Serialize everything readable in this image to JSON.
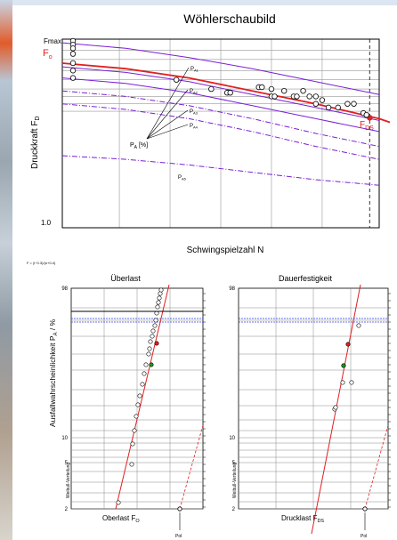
{
  "title": "Wöhlerschaubild",
  "colors": {
    "curve_red": "#e02020",
    "curve_purple": "#7a1fd6",
    "grid": "#888888",
    "green": "#1a9a1a",
    "blue_dotted": "#3344dd"
  },
  "woehler": {
    "ylabel": "Druckkraft F",
    "ylabel_sub": "D",
    "xlabel": "Schwingspielzahl N",
    "fmax_label": "Fmax",
    "fo_label": "F",
    "fo_sub": "o",
    "fds_label": "F",
    "fds_sub": "DS",
    "ytick_bottom": "1.0",
    "pa_label": "P",
    "pa_sub": "A",
    "pa_unit": " [%]",
    "curve_labels": [
      {
        "main": "P",
        "sub": "A1"
      },
      {
        "main": "P",
        "sub": "A2"
      },
      {
        "main": "P",
        "sub": "A3"
      },
      {
        "main": "P",
        "sub": "A4"
      },
      {
        "main": "P",
        "sub": "A5"
      }
    ]
  },
  "formula": "F = (i−0.3)/(n+0.4)",
  "chart_data": [
    {
      "type": "line",
      "title": "Wöhlerschaubild",
      "xlabel": "Schwingspielzahl N",
      "ylabel": "Druckkraft F_D",
      "scale": "log-log",
      "grid": true,
      "series": [
        {
          "name": "F_o",
          "x": [
            0,
            0.2,
            0.4,
            0.6,
            0.8,
            1.0
          ],
          "y": [
            0.88,
            0.85,
            0.8,
            0.73,
            0.66,
            0.58
          ]
        },
        {
          "name": "P_A1",
          "x": [
            0,
            0.2,
            0.4,
            0.6,
            0.8,
            1.0
          ],
          "y": [
            0.99,
            0.96,
            0.91,
            0.85,
            0.78,
            0.71
          ]
        },
        {
          "name": "P_A2",
          "x": [
            0,
            0.2,
            0.4,
            0.6,
            0.8,
            1.0
          ],
          "y": [
            0.86,
            0.83,
            0.78,
            0.71,
            0.64,
            0.57
          ]
        },
        {
          "name": "P_A3",
          "x": [
            0,
            0.2,
            0.4,
            0.6,
            0.8,
            1.0
          ],
          "y": [
            0.8,
            0.77,
            0.72,
            0.65,
            0.58,
            0.51
          ]
        },
        {
          "name": "P_A4",
          "x": [
            0,
            0.2,
            0.4,
            0.6,
            0.8,
            1.0
          ],
          "y": [
            0.73,
            0.7,
            0.65,
            0.58,
            0.5,
            0.43
          ]
        },
        {
          "name": "P_A5",
          "x": [
            0,
            0.2,
            0.4,
            0.6,
            0.8,
            1.0
          ],
          "y": [
            0.66,
            0.63,
            0.58,
            0.51,
            0.43,
            0.36
          ]
        },
        {
          "name": "P_A6",
          "x": [
            0,
            0.2,
            0.4,
            0.6,
            0.8,
            1.0
          ],
          "y": [
            0.38,
            0.36,
            0.33,
            0.29,
            0.25,
            0.22
          ]
        }
      ],
      "points": {
        "x": [
          0,
          0,
          0,
          0,
          0,
          0,
          0,
          0.36,
          0.47,
          0.52,
          0.53,
          0.62,
          0.63,
          0.66,
          0.67,
          0.66,
          0.7,
          0.73,
          0.76,
          0.74,
          0.78,
          0.8,
          0.8,
          0.82,
          0.84,
          0.87,
          0.9,
          0.92,
          0.95,
          0.96
        ],
        "y": [
          1.0,
          0.98,
          0.96,
          0.93,
          0.88,
          0.84,
          0.8,
          0.79,
          0.74,
          0.72,
          0.72,
          0.75,
          0.75,
          0.7,
          0.7,
          0.74,
          0.73,
          0.7,
          0.73,
          0.7,
          0.7,
          0.7,
          0.66,
          0.68,
          0.64,
          0.64,
          0.66,
          0.66,
          0.61,
          0.6
        ]
      },
      "vline_x": 0.97
    },
    {
      "type": "scatter",
      "title": "Überlast",
      "xlabel": "Oberlast F_O",
      "ylabel": "Ausfallwahrscheinlichkeit P_A / %",
      "yticks": [
        "98",
        "10",
        "5",
        "2"
      ],
      "grid": true
    },
    {
      "type": "scatter",
      "title": "Dauerfestigkeit",
      "xlabel": "Drucklast F_DS",
      "yticks": [
        "98",
        "10",
        "5",
        "2"
      ],
      "grid": true
    }
  ],
  "panels": [
    {
      "title": "Überlast",
      "ylabel": "Ausfallwahrscheinlichkeit P",
      "ylabel_tail": " / %",
      "ylabel_sub": "A",
      "weibull": "Weibull-Verteilung",
      "xlabel": "Oberlast F",
      "xlabel_sub": "O",
      "pol": "Pol",
      "yticks": [
        "98",
        "10",
        "5",
        "2"
      ]
    },
    {
      "title": "Dauerfestigkeit",
      "weibull": "Weibull-Verteilung",
      "xlabel": "Drucklast F",
      "xlabel_sub": "DS",
      "pol": "Pol",
      "yticks": [
        "98",
        "10",
        "5",
        "2"
      ]
    }
  ]
}
